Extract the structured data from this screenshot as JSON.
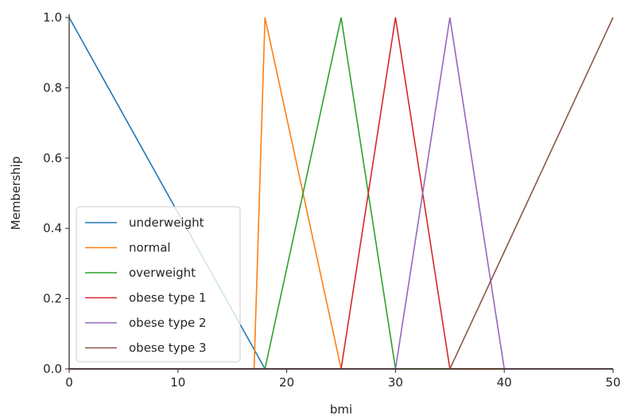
{
  "chart_data": {
    "type": "line",
    "title": "",
    "xlabel": "bmi",
    "ylabel": "Membership",
    "xlim": [
      0,
      50
    ],
    "ylim": [
      0,
      1.0
    ],
    "x_ticks": [
      0,
      10,
      20,
      30,
      40,
      50
    ],
    "x_tick_labels": [
      "0",
      "10",
      "20",
      "30",
      "40",
      "50"
    ],
    "y_ticks": [
      0.0,
      0.2,
      0.4,
      0.6,
      0.8,
      1.0
    ],
    "y_tick_labels": [
      "0.0",
      "0.2",
      "0.4",
      "0.6",
      "0.8",
      "1.0"
    ],
    "grid": false,
    "legend_position": "lower-left",
    "series": [
      {
        "name": "underweight",
        "color": "#1f77b4",
        "x": [
          0,
          18,
          50
        ],
        "y": [
          1,
          0,
          0
        ]
      },
      {
        "name": "normal",
        "color": "#ff7f0e",
        "x": [
          0,
          17,
          18,
          25,
          50
        ],
        "y": [
          0,
          0,
          1,
          0,
          0
        ]
      },
      {
        "name": "overweight",
        "color": "#2ca02c",
        "x": [
          0,
          18,
          25,
          30,
          50
        ],
        "y": [
          0,
          0,
          1,
          0,
          0
        ]
      },
      {
        "name": "obese type 1",
        "color": "#d62728",
        "x": [
          0,
          25,
          30,
          35,
          50
        ],
        "y": [
          0,
          0,
          1,
          0,
          0
        ]
      },
      {
        "name": "obese type 2",
        "color": "#9467bd",
        "x": [
          0,
          30,
          35,
          40,
          50
        ],
        "y": [
          0,
          0,
          1,
          0,
          0
        ]
      },
      {
        "name": "obese type 3",
        "color": "#8c564b",
        "x": [
          0,
          35,
          50
        ],
        "y": [
          0,
          0,
          1
        ]
      }
    ]
  }
}
